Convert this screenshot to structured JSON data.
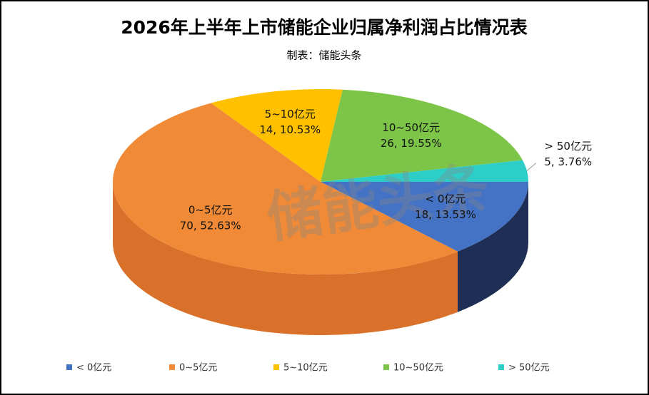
{
  "chart_data": {
    "type": "pie3d",
    "title": "2026年上半年上市储能企业归属净利润占比情况表",
    "subtitle": "制表：储能头条",
    "watermark": "储能头条",
    "categories": [
      "< 0亿元",
      "0~5亿元",
      "5~10亿元",
      "10~50亿元",
      "> 50亿元"
    ],
    "values": [
      18,
      70,
      14,
      26,
      5
    ],
    "value_labels": [
      "18, 13.53%",
      "70, 52.63%",
      "14, 10.53%",
      "26, 19.55%",
      "5, 3.76%"
    ],
    "colors": [
      "#4472c4",
      "#f08a36",
      "#ffc000",
      "#7dc548",
      "#2dcdc8"
    ],
    "side_colors": [
      "#1f2e55",
      "#d9712a",
      "#c99800",
      "#5a9a30",
      "#1f9a96"
    ],
    "legend": "bottom"
  }
}
